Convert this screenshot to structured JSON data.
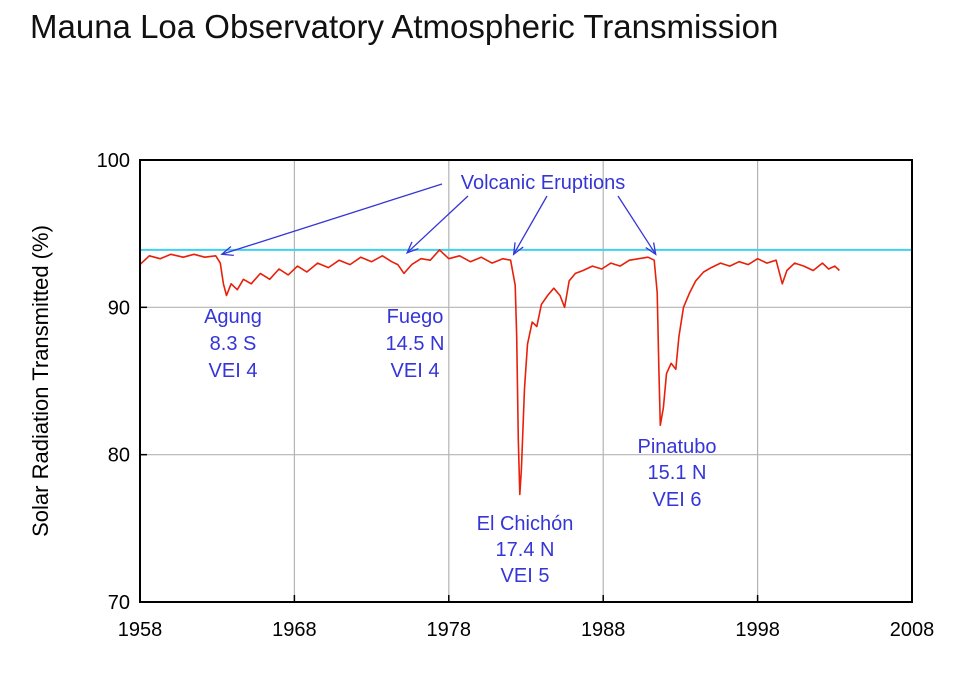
{
  "title": "Mauna Loa Observatory Atmospheric Transmission",
  "chart_data": {
    "type": "line",
    "title": "Mauna Loa Observatory Atmospheric Transmission",
    "xlabel": "",
    "ylabel": "Solar Radiation Transmitted (%)",
    "xlim": [
      1958,
      2008
    ],
    "ylim": [
      70,
      100
    ],
    "x_ticks": [
      "1958",
      "1968",
      "1978",
      "1988",
      "1998",
      "2008"
    ],
    "y_ticks": [
      "70",
      "80",
      "90",
      "100"
    ],
    "grid": true,
    "reference_line": {
      "y": 93.9,
      "color": "#40d0f0"
    },
    "series": [
      {
        "color": "#e8200a",
        "points": [
          [
            1958.0,
            92.9
          ],
          [
            1958.6,
            93.5
          ],
          [
            1959.3,
            93.3
          ],
          [
            1960.0,
            93.6
          ],
          [
            1960.8,
            93.4
          ],
          [
            1961.5,
            93.6
          ],
          [
            1962.2,
            93.4
          ],
          [
            1962.9,
            93.5
          ],
          [
            1963.2,
            93.0
          ],
          [
            1963.4,
            91.6
          ],
          [
            1963.6,
            90.8
          ],
          [
            1963.9,
            91.6
          ],
          [
            1964.3,
            91.2
          ],
          [
            1964.7,
            91.9
          ],
          [
            1965.2,
            91.6
          ],
          [
            1965.8,
            92.3
          ],
          [
            1966.4,
            91.9
          ],
          [
            1967.0,
            92.6
          ],
          [
            1967.6,
            92.2
          ],
          [
            1968.2,
            92.8
          ],
          [
            1968.8,
            92.4
          ],
          [
            1969.5,
            93.0
          ],
          [
            1970.2,
            92.7
          ],
          [
            1970.9,
            93.2
          ],
          [
            1971.6,
            92.9
          ],
          [
            1972.3,
            93.4
          ],
          [
            1973.0,
            93.1
          ],
          [
            1973.7,
            93.5
          ],
          [
            1974.3,
            93.1
          ],
          [
            1974.7,
            92.9
          ],
          [
            1975.1,
            92.3
          ],
          [
            1975.6,
            92.9
          ],
          [
            1976.2,
            93.3
          ],
          [
            1976.8,
            93.2
          ],
          [
            1977.4,
            93.9
          ],
          [
            1978.0,
            93.3
          ],
          [
            1978.7,
            93.5
          ],
          [
            1979.4,
            93.1
          ],
          [
            1980.1,
            93.4
          ],
          [
            1980.8,
            93.0
          ],
          [
            1981.5,
            93.3
          ],
          [
            1982.0,
            93.2
          ],
          [
            1982.3,
            91.5
          ],
          [
            1982.4,
            88.0
          ],
          [
            1982.5,
            81.0
          ],
          [
            1982.6,
            77.3
          ],
          [
            1982.7,
            79.0
          ],
          [
            1982.9,
            84.5
          ],
          [
            1983.1,
            87.5
          ],
          [
            1983.4,
            89.0
          ],
          [
            1983.7,
            88.7
          ],
          [
            1984.0,
            90.2
          ],
          [
            1984.4,
            90.8
          ],
          [
            1984.8,
            91.3
          ],
          [
            1985.2,
            90.8
          ],
          [
            1985.5,
            90.0
          ],
          [
            1985.8,
            91.8
          ],
          [
            1986.2,
            92.3
          ],
          [
            1986.7,
            92.5
          ],
          [
            1987.3,
            92.8
          ],
          [
            1987.9,
            92.6
          ],
          [
            1988.5,
            93.0
          ],
          [
            1989.1,
            92.8
          ],
          [
            1989.7,
            93.2
          ],
          [
            1990.3,
            93.3
          ],
          [
            1990.9,
            93.4
          ],
          [
            1991.3,
            93.2
          ],
          [
            1991.5,
            91.0
          ],
          [
            1991.6,
            86.0
          ],
          [
            1991.7,
            82.0
          ],
          [
            1991.9,
            83.2
          ],
          [
            1992.1,
            85.5
          ],
          [
            1992.4,
            86.2
          ],
          [
            1992.7,
            85.8
          ],
          [
            1992.9,
            88.0
          ],
          [
            1993.2,
            90.0
          ],
          [
            1993.6,
            91.0
          ],
          [
            1994.0,
            91.8
          ],
          [
            1994.5,
            92.4
          ],
          [
            1995.0,
            92.7
          ],
          [
            1995.6,
            93.0
          ],
          [
            1996.2,
            92.8
          ],
          [
            1996.8,
            93.1
          ],
          [
            1997.4,
            92.9
          ],
          [
            1998.0,
            93.3
          ],
          [
            1998.6,
            93.0
          ],
          [
            1999.2,
            93.2
          ],
          [
            1999.6,
            91.6
          ],
          [
            1999.9,
            92.5
          ],
          [
            2000.4,
            93.0
          ],
          [
            2001.0,
            92.8
          ],
          [
            2001.6,
            92.5
          ],
          [
            2002.2,
            93.0
          ],
          [
            2002.6,
            92.6
          ],
          [
            2003.0,
            92.8
          ],
          [
            2003.3,
            92.5
          ]
        ]
      }
    ],
    "annotations": {
      "volcanic_label": "Volcanic Eruptions",
      "arrow_targets": [
        {
          "x": 1963.3,
          "y": 93.6
        },
        {
          "x": 1975.3,
          "y": 93.7
        },
        {
          "x": 1982.2,
          "y": 93.6
        },
        {
          "x": 1991.4,
          "y": 93.6
        }
      ],
      "eruptions": [
        {
          "name": "Agung",
          "lat": "8.3 S",
          "vei": "VEI  4"
        },
        {
          "name": "Fuego",
          "lat": "14.5 N",
          "vei": "VEI  4"
        },
        {
          "name": "El Chichón",
          "lat": "17.4 N",
          "vei": "VEI  5"
        },
        {
          "name": "Pinatubo",
          "lat": "15.1 N",
          "vei": "VEI  6"
        }
      ]
    },
    "colors": {
      "annotation": "#3535d8",
      "grid": "#b4b4b4"
    }
  }
}
